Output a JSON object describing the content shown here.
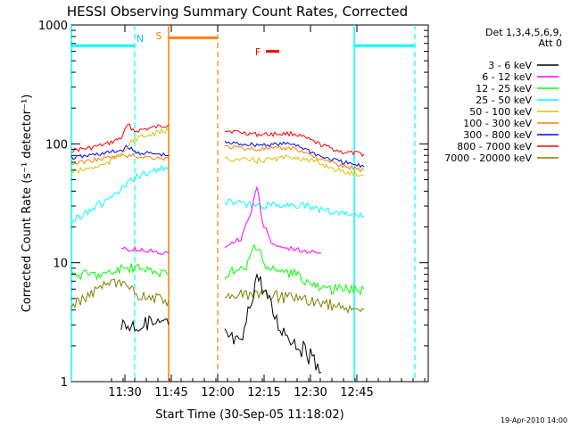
{
  "chart_data": {
    "type": "line",
    "title": "HESSI Observing Summary Count Rates, Corrected",
    "xlabel": "Start Time (30-Sep-05 11:18:02)",
    "ylabel": "Corrected Count Rate (s⁻¹ detector⁻¹)",
    "yscale": "log",
    "ylim": [
      1,
      1000
    ],
    "xlim_minutes": [
      18,
      92
    ],
    "x_ticks": [
      {
        "label": "11:30",
        "minute": 30
      },
      {
        "label": "11:45",
        "minute": 45
      },
      {
        "label": "12:00",
        "minute": 60
      },
      {
        "label": "12:15",
        "minute": 75
      },
      {
        "label": "12:30",
        "minute": 90
      },
      {
        "label": "12:45",
        "minute": 105
      }
    ],
    "y_ticks": [
      {
        "label": "1",
        "value": 1
      },
      {
        "label": "10",
        "value": 10
      },
      {
        "label": "100",
        "value": 100
      },
      {
        "label": "1000",
        "value": 1000
      }
    ],
    "legend": {
      "header": [
        "Det 1,3,4,5,6,9,",
        "Att 0"
      ],
      "placement": "right",
      "entries": [
        {
          "label": "3 - 6 keV",
          "color": "#000000"
        },
        {
          "label": "6 - 12 keV",
          "color": "#ff00ff"
        },
        {
          "label": "12 - 25 keV",
          "color": "#00ff00"
        },
        {
          "label": "25 - 50 keV",
          "color": "#00ffff"
        },
        {
          "label": "50 - 100 keV",
          "color": "#d4c400"
        },
        {
          "label": "100 - 300 keV",
          "color": "#ff8000"
        },
        {
          "label": "300 - 800 keV",
          "color": "#0000ff"
        },
        {
          "label": "800 - 7000 keV",
          "color": "#ff0000"
        },
        {
          "label": "7000 - 20000 keV",
          "color": "#808000"
        }
      ]
    },
    "annotations": {
      "night_label": "N",
      "saa_label": "S",
      "flare_label": "F"
    },
    "flag_intervals": [
      {
        "flag": "N",
        "color": "#00ffff",
        "start": 11.3,
        "end": 32.3,
        "style": "solid-dashed",
        "level": 670
      },
      {
        "flag": "N",
        "color": "#00ffff",
        "start": 67.5,
        "end": 82.2,
        "style": "solid-dashed",
        "level": 670
      },
      {
        "flag": "S",
        "color": "#ff8000",
        "start": 36.1,
        "end": 47.6,
        "style": "solid-dashed",
        "level": 780
      },
      {
        "flag": "F",
        "color": "#ff0000",
        "start": 47.3,
        "end": 50.0,
        "style": "bar",
        "level": 600
      }
    ],
    "data_gap_minutes": [
      34.8,
      48.2
    ],
    "series": [
      {
        "name": "800 - 7000 keV",
        "color": "#ff0000",
        "points": [
          [
            18,
            88
          ],
          [
            22,
            92
          ],
          [
            26,
            100
          ],
          [
            29,
            112
          ],
          [
            30.5,
            145
          ],
          [
            32,
            128
          ],
          [
            34,
            145
          ],
          [
            50,
            130
          ],
          [
            56,
            120
          ],
          [
            63,
            122
          ],
          [
            68,
            98
          ],
          [
            72,
            85
          ],
          [
            76,
            82
          ]
        ]
      },
      {
        "name": "300 - 800 keV",
        "color": "#0000ff",
        "points": [
          [
            18,
            76
          ],
          [
            22,
            80
          ],
          [
            26,
            84
          ],
          [
            29,
            88
          ],
          [
            30.5,
            95
          ],
          [
            32,
            85
          ],
          [
            34,
            80
          ],
          [
            50,
            102
          ],
          [
            56,
            98
          ],
          [
            63,
            100
          ],
          [
            68,
            78
          ],
          [
            72,
            70
          ],
          [
            76,
            64
          ]
        ]
      },
      {
        "name": "100 - 300 keV",
        "color": "#ff8000",
        "points": [
          [
            18,
            68
          ],
          [
            22,
            72
          ],
          [
            26,
            76
          ],
          [
            30,
            80
          ],
          [
            34,
            75
          ],
          [
            50,
            95
          ],
          [
            56,
            90
          ],
          [
            63,
            92
          ],
          [
            68,
            74
          ],
          [
            72,
            65
          ],
          [
            76,
            60
          ]
        ]
      },
      {
        "name": "50 - 100 keV",
        "color": "#d4c400",
        "points": [
          [
            18,
            58
          ],
          [
            22,
            62
          ],
          [
            26,
            68
          ],
          [
            29,
            85
          ],
          [
            30.5,
            95
          ],
          [
            32,
            110
          ],
          [
            34,
            130
          ],
          [
            50,
            75
          ],
          [
            56,
            72
          ],
          [
            63,
            78
          ],
          [
            68,
            68
          ],
          [
            72,
            58
          ],
          [
            76,
            55
          ]
        ]
      },
      {
        "name": "25 - 50 keV",
        "color": "#00ffff",
        "points": [
          [
            18,
            22
          ],
          [
            22,
            28
          ],
          [
            25,
            32
          ],
          [
            28,
            38
          ],
          [
            30,
            44
          ],
          [
            32,
            52
          ],
          [
            34,
            65
          ],
          [
            50,
            33
          ],
          [
            56,
            30
          ],
          [
            63,
            31
          ],
          [
            68,
            28
          ],
          [
            72,
            26
          ],
          [
            76,
            25
          ]
        ]
      },
      {
        "name": "12 - 25 keV",
        "color": "#00ff00",
        "points": [
          [
            18,
            8
          ],
          [
            22,
            8
          ],
          [
            26,
            8
          ],
          [
            29,
            9
          ],
          [
            32,
            9
          ],
          [
            34,
            8
          ],
          [
            50,
            8
          ],
          [
            54,
            9
          ],
          [
            55.5,
            14
          ],
          [
            58,
            9
          ],
          [
            63,
            8
          ],
          [
            68,
            6
          ],
          [
            72,
            6
          ],
          [
            76,
            6
          ]
        ]
      },
      {
        "name": "6 - 12 keV",
        "color": "#ff00ff",
        "points": [
          [
            29,
            13
          ],
          [
            32,
            13
          ],
          [
            34,
            12
          ],
          [
            50,
            14
          ],
          [
            53,
            16
          ],
          [
            55,
            28
          ],
          [
            56,
            45
          ],
          [
            57,
            22
          ],
          [
            59,
            14
          ],
          [
            63,
            13
          ],
          [
            68,
            12
          ]
        ]
      },
      {
        "name": "7000 - 20000 keV",
        "color": "#808000",
        "points": [
          [
            18,
            4.2
          ],
          [
            22,
            5.5
          ],
          [
            26,
            6.5
          ],
          [
            29,
            6.5
          ],
          [
            32,
            5.5
          ],
          [
            34,
            4.8
          ],
          [
            50,
            5
          ],
          [
            56,
            5.5
          ],
          [
            63,
            5
          ],
          [
            68,
            4.6
          ],
          [
            72,
            4.2
          ],
          [
            76,
            4.0
          ]
        ]
      },
      {
        "name": "3 - 6 keV",
        "color": "#000000",
        "points": [
          [
            29,
            3
          ],
          [
            32,
            3
          ],
          [
            34,
            3
          ],
          [
            50,
            2.5
          ],
          [
            53,
            2.0
          ],
          [
            56,
            8
          ],
          [
            58,
            5
          ],
          [
            60,
            3
          ],
          [
            63,
            2.2
          ],
          [
            66,
            1.6
          ],
          [
            68,
            1.2
          ]
        ]
      }
    ]
  },
  "footer": {
    "date_stamp": "19-Apr-2010 14:00"
  }
}
